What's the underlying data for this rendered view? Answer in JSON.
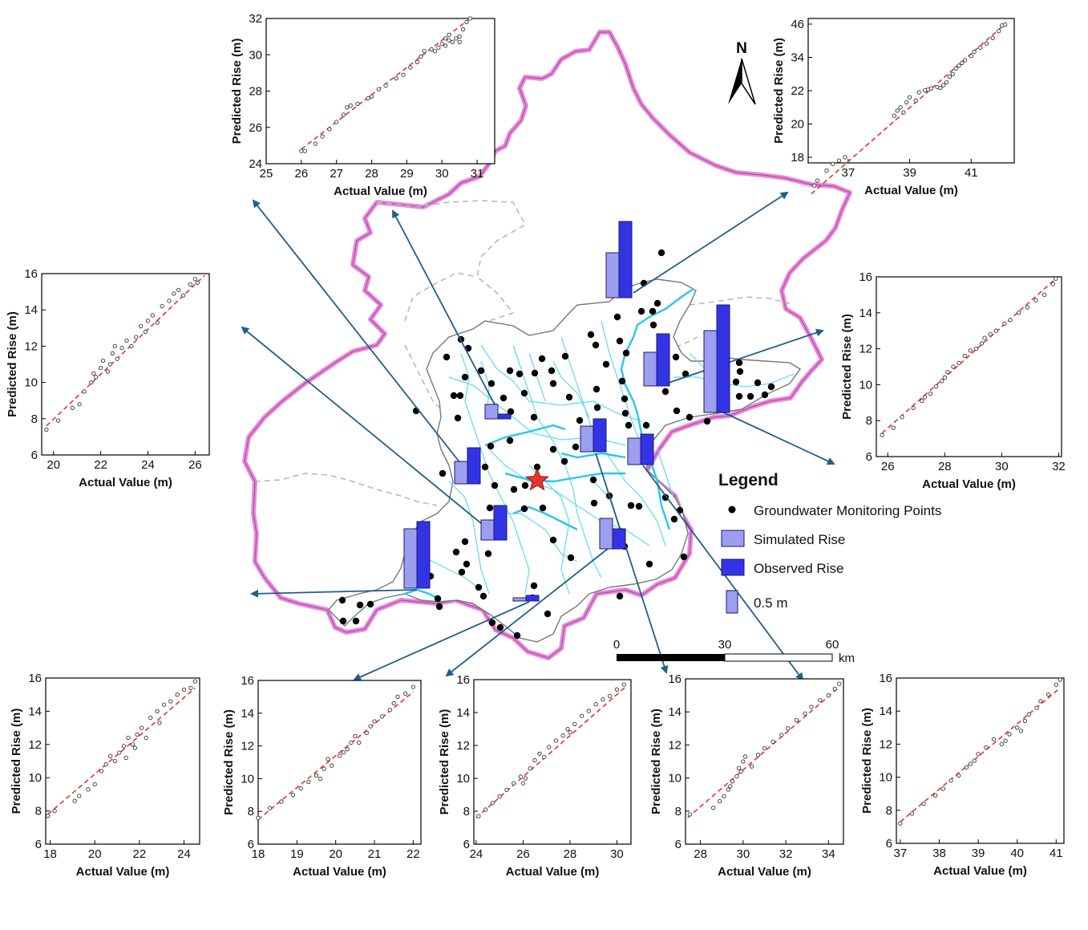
{
  "north_label": "N",
  "legend": {
    "title": "Legend",
    "monitoring_points": "Groundwater Monitoring Points",
    "simulated": "Simulated Rise",
    "observed": "Observed Rise",
    "scale_bar_value": "0.5 m"
  },
  "scale_bar": {
    "ticks": [
      "0",
      "30",
      "60"
    ],
    "unit": "km"
  },
  "colors": {
    "boundary": "#e07ad6",
    "river": "#3fd4ee",
    "district": "#8a8a8a",
    "simulated": "#9c9ff0",
    "observed": "#3333e6",
    "arrow": "#1f5f88",
    "fit_line": "#e8322a",
    "star": "#e8322a"
  },
  "chart_data": [
    {
      "type": "scatter",
      "xlabel": "Actual Value (m)",
      "ylabel": "Predicted Rise (m)",
      "xlim": [
        25,
        31.5
      ],
      "ylim": [
        24,
        32
      ],
      "xticks": [
        "25",
        "26",
        "27",
        "28",
        "29",
        "30",
        "31"
      ],
      "yticks": [
        "24",
        "26",
        "28",
        "30",
        "32"
      ],
      "fit": [
        [
          26.0,
          24.8
        ],
        [
          30.8,
          32.0
        ]
      ],
      "points": [
        [
          26.0,
          24.7
        ],
        [
          26.1,
          24.7
        ],
        [
          26.4,
          25.1
        ],
        [
          26.6,
          25.5
        ],
        [
          26.8,
          25.9
        ],
        [
          27.0,
          26.3
        ],
        [
          27.2,
          26.7
        ],
        [
          27.3,
          27.1
        ],
        [
          27.4,
          27.2
        ],
        [
          27.6,
          27.3
        ],
        [
          27.9,
          27.6
        ],
        [
          28.0,
          27.7
        ],
        [
          28.2,
          28.1
        ],
        [
          28.4,
          28.3
        ],
        [
          28.7,
          28.7
        ],
        [
          28.9,
          28.9
        ],
        [
          29.1,
          29.3
        ],
        [
          29.3,
          29.6
        ],
        [
          29.4,
          29.9
        ],
        [
          29.5,
          30.2
        ],
        [
          29.7,
          30.3
        ],
        [
          29.8,
          30.2
        ],
        [
          29.9,
          30.4
        ],
        [
          30.0,
          30.6
        ],
        [
          30.1,
          30.5
        ],
        [
          30.2,
          30.8
        ],
        [
          30.2,
          31.1
        ],
        [
          30.3,
          30.7
        ],
        [
          30.4,
          30.9
        ],
        [
          30.5,
          31.0
        ],
        [
          30.6,
          31.4
        ],
        [
          30.7,
          31.8
        ],
        [
          30.8,
          32.0
        ],
        [
          30.5,
          30.7
        ],
        [
          30.1,
          30.9
        ]
      ]
    },
    {
      "type": "scatter",
      "xlabel": "Actual Value (m)",
      "ylabel": "Predicted Rise (m)",
      "xlim": [
        35.7,
        42.4
      ],
      "ylim": [
        15.5,
        46
      ],
      "xticks": [
        "37",
        "39",
        "41"
      ],
      "yticks": [
        "18",
        "20",
        "22",
        "34",
        "46"
      ],
      "fit": [
        [
          35.8,
          15.8
        ],
        [
          42.1,
          46.0
        ]
      ],
      "points": [
        [
          35.9,
          16.3
        ],
        [
          36.0,
          16.6
        ],
        [
          36.3,
          17.2
        ],
        [
          36.5,
          17.6
        ],
        [
          36.7,
          17.8
        ],
        [
          36.9,
          18.0
        ],
        [
          38.5,
          20.5
        ],
        [
          38.6,
          20.8
        ],
        [
          38.7,
          21.0
        ],
        [
          38.8,
          20.7
        ],
        [
          38.9,
          21.3
        ],
        [
          39.0,
          21.6
        ],
        [
          39.2,
          21.4
        ],
        [
          39.3,
          21.9
        ],
        [
          39.5,
          22.1
        ],
        [
          39.6,
          22.4
        ],
        [
          39.7,
          22.8
        ],
        [
          39.9,
          23.3
        ],
        [
          40.0,
          23.0
        ],
        [
          40.1,
          24.0
        ],
        [
          40.2,
          25.0
        ],
        [
          40.3,
          27.0
        ],
        [
          40.4,
          28.0
        ],
        [
          40.5,
          30.0
        ],
        [
          40.7,
          32.0
        ],
        [
          40.8,
          33.0
        ],
        [
          41.0,
          34.5
        ],
        [
          41.1,
          36.0
        ],
        [
          41.3,
          37.5
        ],
        [
          41.5,
          39.0
        ],
        [
          41.7,
          41.0
        ],
        [
          41.9,
          43.5
        ],
        [
          42.0,
          45.5
        ],
        [
          42.1,
          45.8
        ],
        [
          40.6,
          31.0
        ]
      ]
    },
    {
      "type": "scatter",
      "xlabel": "Actual Value (m)",
      "ylabel": "Predicted Rise (m)",
      "xlim": [
        19.5,
        26.6
      ],
      "ylim": [
        6,
        16
      ],
      "xticks": [
        "20",
        "22",
        "24",
        "26"
      ],
      "yticks": [
        "6",
        "8",
        "10",
        "12",
        "14",
        "16"
      ],
      "fit": [
        [
          19.7,
          7.6
        ],
        [
          26.4,
          15.9
        ]
      ],
      "points": [
        [
          19.7,
          7.4
        ],
        [
          20.2,
          7.9
        ],
        [
          20.8,
          8.6
        ],
        [
          21.1,
          8.8
        ],
        [
          21.3,
          9.5
        ],
        [
          21.6,
          10.0
        ],
        [
          21.7,
          10.5
        ],
        [
          21.8,
          10.3
        ],
        [
          22.0,
          10.8
        ],
        [
          22.1,
          11.2
        ],
        [
          22.3,
          10.6
        ],
        [
          22.4,
          11.0
        ],
        [
          22.5,
          11.6
        ],
        [
          22.6,
          12.0
        ],
        [
          22.7,
          11.3
        ],
        [
          22.9,
          11.9
        ],
        [
          23.1,
          12.3
        ],
        [
          23.3,
          12.0
        ],
        [
          23.5,
          12.5
        ],
        [
          23.7,
          13.1
        ],
        [
          23.9,
          12.8
        ],
        [
          24.0,
          13.4
        ],
        [
          24.2,
          13.7
        ],
        [
          24.4,
          13.3
        ],
        [
          24.6,
          14.2
        ],
        [
          24.9,
          14.5
        ],
        [
          25.1,
          14.9
        ],
        [
          25.3,
          15.1
        ],
        [
          25.5,
          14.8
        ],
        [
          25.8,
          15.4
        ],
        [
          26.0,
          15.7
        ],
        [
          26.1,
          15.5
        ]
      ]
    },
    {
      "type": "scatter",
      "xlabel": "Actual Value (m)",
      "ylabel": "Predicted Rise (m)",
      "xlim": [
        25.6,
        32.1
      ],
      "ylim": [
        6,
        16
      ],
      "xticks": [
        "26",
        "28",
        "30",
        "32"
      ],
      "yticks": [
        "6",
        "8",
        "10",
        "12",
        "14",
        "16"
      ],
      "fit": [
        [
          25.8,
          7.3
        ],
        [
          31.9,
          15.9
        ]
      ],
      "points": [
        [
          25.8,
          7.2
        ],
        [
          26.2,
          7.6
        ],
        [
          26.5,
          8.2
        ],
        [
          26.9,
          8.7
        ],
        [
          27.3,
          9.3
        ],
        [
          27.5,
          9.5
        ],
        [
          27.7,
          9.9
        ],
        [
          27.9,
          10.2
        ],
        [
          28.1,
          10.7
        ],
        [
          28.3,
          11.0
        ],
        [
          28.5,
          11.2
        ],
        [
          28.7,
          11.6
        ],
        [
          28.9,
          11.9
        ],
        [
          29.1,
          12.0
        ],
        [
          29.3,
          12.3
        ],
        [
          29.6,
          12.8
        ],
        [
          29.8,
          13.0
        ],
        [
          30.1,
          13.4
        ],
        [
          30.3,
          13.6
        ],
        [
          30.6,
          14.0
        ],
        [
          30.9,
          14.3
        ],
        [
          31.2,
          14.7
        ],
        [
          31.5,
          15.0
        ],
        [
          31.8,
          15.6
        ],
        [
          31.9,
          15.9
        ],
        [
          29.4,
          12.6
        ],
        [
          28.0,
          10.4
        ],
        [
          27.2,
          9.1
        ]
      ]
    },
    {
      "type": "scatter",
      "xlabel": "Actual Value (m)",
      "ylabel": "Predicted Rise (m)",
      "xlim": [
        17.8,
        24.7
      ],
      "ylim": [
        6,
        16
      ],
      "xticks": [
        "18",
        "20",
        "22",
        "24"
      ],
      "yticks": [
        "6",
        "8",
        "10",
        "12",
        "14",
        "16"
      ],
      "fit": [
        [
          17.9,
          7.8
        ],
        [
          24.5,
          15.4
        ]
      ],
      "points": [
        [
          17.9,
          7.7
        ],
        [
          18.2,
          8.0
        ],
        [
          19.1,
          8.6
        ],
        [
          19.3,
          8.9
        ],
        [
          19.7,
          9.3
        ],
        [
          20.0,
          9.6
        ],
        [
          20.3,
          10.4
        ],
        [
          20.5,
          10.8
        ],
        [
          20.7,
          11.3
        ],
        [
          20.9,
          11.0
        ],
        [
          21.1,
          11.5
        ],
        [
          21.3,
          11.9
        ],
        [
          21.4,
          11.2
        ],
        [
          21.5,
          12.4
        ],
        [
          21.7,
          12.0
        ],
        [
          21.9,
          12.6
        ],
        [
          22.1,
          13.0
        ],
        [
          22.3,
          12.4
        ],
        [
          22.5,
          13.6
        ],
        [
          22.8,
          14.0
        ],
        [
          23.1,
          14.4
        ],
        [
          23.4,
          14.6
        ],
        [
          23.7,
          15.0
        ],
        [
          24.0,
          15.3
        ],
        [
          24.3,
          15.4
        ],
        [
          24.5,
          15.8
        ],
        [
          22.9,
          13.3
        ],
        [
          21.8,
          11.8
        ]
      ]
    },
    {
      "type": "scatter",
      "xlabel": "Actual Value (m)",
      "ylabel": "Predicted Rise (m)",
      "xlim": [
        18,
        22.2
      ],
      "ylim": [
        6,
        16
      ],
      "xticks": [
        "18",
        "19",
        "20",
        "21",
        "22"
      ],
      "yticks": [
        "6",
        "8",
        "10",
        "12",
        "14",
        "16"
      ],
      "fit": [
        [
          18.0,
          7.5
        ],
        [
          22.0,
          15.3
        ]
      ],
      "points": [
        [
          18.0,
          7.6
        ],
        [
          18.3,
          8.2
        ],
        [
          18.6,
          8.6
        ],
        [
          18.9,
          9.0
        ],
        [
          19.1,
          9.4
        ],
        [
          19.3,
          9.8
        ],
        [
          19.5,
          10.2
        ],
        [
          19.7,
          10.6
        ],
        [
          19.8,
          11.2
        ],
        [
          19.9,
          10.8
        ],
        [
          20.1,
          11.4
        ],
        [
          20.3,
          11.8
        ],
        [
          20.4,
          12.2
        ],
        [
          20.5,
          12.6
        ],
        [
          20.6,
          12.2
        ],
        [
          20.8,
          12.8
        ],
        [
          20.9,
          13.2
        ],
        [
          21.0,
          13.5
        ],
        [
          21.2,
          13.8
        ],
        [
          21.4,
          14.2
        ],
        [
          21.5,
          14.6
        ],
        [
          21.6,
          15.0
        ],
        [
          21.8,
          15.2
        ],
        [
          22.0,
          15.6
        ],
        [
          20.2,
          11.6
        ],
        [
          19.6,
          10.0
        ]
      ]
    },
    {
      "type": "scatter",
      "xlabel": "Actual Value (m)",
      "ylabel": "Predicted Rise (m)",
      "xlim": [
        23.9,
        30.6
      ],
      "ylim": [
        6,
        16
      ],
      "xticks": [
        "24",
        "26",
        "28",
        "30"
      ],
      "yticks": [
        "6",
        "8",
        "10",
        "12",
        "14",
        "16"
      ],
      "fit": [
        [
          24.0,
          7.6
        ],
        [
          30.4,
          15.6
        ]
      ],
      "points": [
        [
          24.1,
          7.7
        ],
        [
          24.4,
          8.1
        ],
        [
          24.7,
          8.5
        ],
        [
          25.0,
          8.9
        ],
        [
          25.3,
          9.3
        ],
        [
          25.6,
          9.7
        ],
        [
          25.9,
          10.1
        ],
        [
          26.1,
          10.0
        ],
        [
          26.3,
          10.6
        ],
        [
          26.5,
          11.1
        ],
        [
          26.7,
          11.5
        ],
        [
          26.9,
          11.3
        ],
        [
          27.1,
          11.9
        ],
        [
          27.4,
          12.3
        ],
        [
          27.7,
          12.6
        ],
        [
          27.9,
          13.0
        ],
        [
          28.2,
          13.3
        ],
        [
          28.5,
          13.8
        ],
        [
          28.8,
          14.1
        ],
        [
          29.1,
          14.5
        ],
        [
          29.4,
          14.8
        ],
        [
          29.7,
          15.0
        ],
        [
          30.0,
          15.4
        ],
        [
          30.3,
          15.7
        ],
        [
          28.0,
          12.8
        ],
        [
          26.0,
          9.7
        ]
      ]
    },
    {
      "type": "scatter",
      "xlabel": "Actual Value (m)",
      "ylabel": "Predicted Rise (m)",
      "xlim": [
        27.3,
        34.7
      ],
      "ylim": [
        6,
        16
      ],
      "xticks": [
        "28",
        "30",
        "32",
        "34"
      ],
      "yticks": [
        "6",
        "8",
        "10",
        "12",
        "14",
        "16"
      ],
      "fit": [
        [
          27.4,
          7.6
        ],
        [
          34.5,
          15.5
        ]
      ],
      "points": [
        [
          27.5,
          7.8
        ],
        [
          28.6,
          8.2
        ],
        [
          28.9,
          8.6
        ],
        [
          29.1,
          8.9
        ],
        [
          29.3,
          9.3
        ],
        [
          29.5,
          9.8
        ],
        [
          29.7,
          10.1
        ],
        [
          29.8,
          10.6
        ],
        [
          30.0,
          11.0
        ],
        [
          30.1,
          11.3
        ],
        [
          30.4,
          10.7
        ],
        [
          30.7,
          11.4
        ],
        [
          31.0,
          11.8
        ],
        [
          31.4,
          12.2
        ],
        [
          31.8,
          12.6
        ],
        [
          32.1,
          13.0
        ],
        [
          32.5,
          13.5
        ],
        [
          32.9,
          13.9
        ],
        [
          33.2,
          14.3
        ],
        [
          33.6,
          14.7
        ],
        [
          34.0,
          15.0
        ],
        [
          34.3,
          15.4
        ],
        [
          34.5,
          15.7
        ],
        [
          29.9,
          10.4
        ],
        [
          29.4,
          9.5
        ]
      ]
    },
    {
      "type": "scatter",
      "xlabel": "Actual Value (m)",
      "ylabel": "Predicted Rise (m)",
      "xlim": [
        36.9,
        41.2
      ],
      "ylim": [
        6,
        16
      ],
      "xticks": [
        "37",
        "38",
        "39",
        "40",
        "41"
      ],
      "yticks": [
        "6",
        "8",
        "10",
        "12",
        "14",
        "16"
      ],
      "fit": [
        [
          37.0,
          7.3
        ],
        [
          41.1,
          15.4
        ]
      ],
      "points": [
        [
          37.0,
          7.2
        ],
        [
          37.3,
          7.8
        ],
        [
          37.6,
          8.4
        ],
        [
          37.9,
          8.9
        ],
        [
          38.1,
          9.3
        ],
        [
          38.3,
          9.8
        ],
        [
          38.5,
          10.1
        ],
        [
          38.7,
          10.6
        ],
        [
          38.9,
          11.0
        ],
        [
          39.0,
          11.4
        ],
        [
          39.2,
          11.8
        ],
        [
          39.4,
          12.3
        ],
        [
          39.6,
          12.0
        ],
        [
          39.8,
          12.6
        ],
        [
          40.0,
          13.0
        ],
        [
          40.1,
          12.8
        ],
        [
          40.2,
          13.4
        ],
        [
          40.3,
          13.8
        ],
        [
          40.5,
          14.2
        ],
        [
          40.6,
          14.6
        ],
        [
          40.8,
          15.0
        ],
        [
          41.0,
          15.6
        ],
        [
          41.1,
          15.9
        ],
        [
          39.7,
          12.2
        ],
        [
          38.8,
          10.8
        ]
      ]
    }
  ]
}
